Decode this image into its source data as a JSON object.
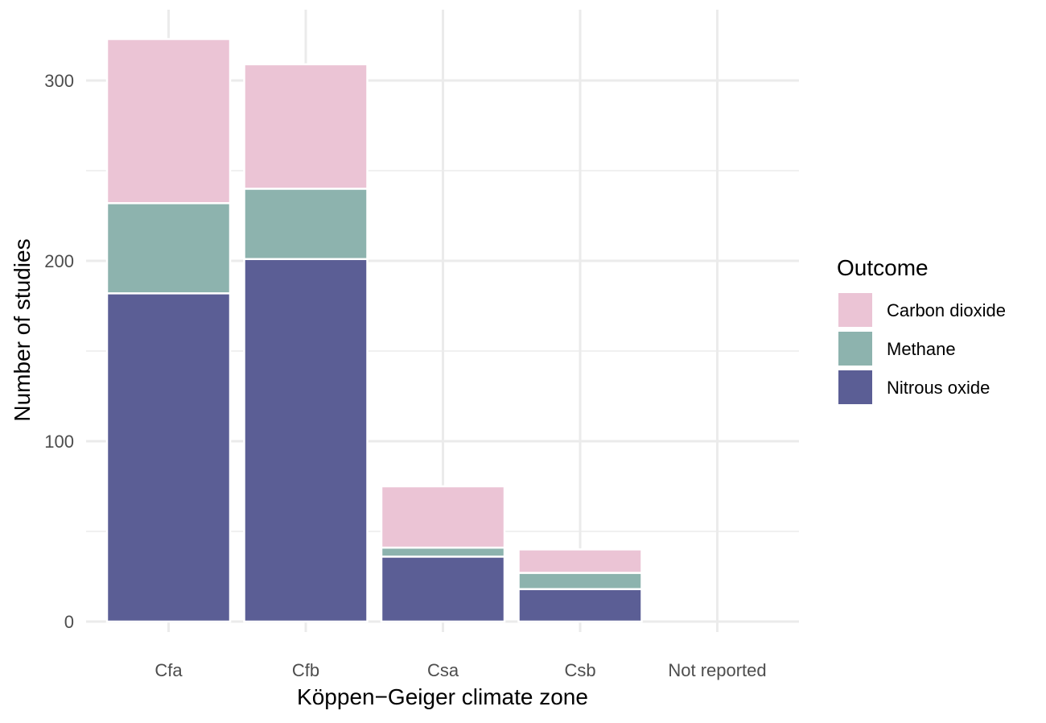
{
  "chart_data": {
    "type": "bar",
    "stacked": true,
    "categories": [
      "Cfa",
      "Cfb",
      "Csa",
      "Csb",
      "Not reported"
    ],
    "series": [
      {
        "name": "Nitrous oxide",
        "values": [
          182,
          201,
          36,
          18,
          0
        ],
        "color": "#5b5e95"
      },
      {
        "name": "Methane",
        "values": [
          50,
          39,
          5,
          9,
          0
        ],
        "color": "#8db3ae"
      },
      {
        "name": "Carbon dioxide",
        "values": [
          91,
          69,
          34,
          13,
          0
        ],
        "color": "#ebc4d5"
      }
    ],
    "xlabel": "Köppen−Geiger climate zone",
    "ylabel": "Number of studies",
    "ylim": [
      0,
      330
    ],
    "yticks": [
      "0",
      "100",
      "200",
      "300"
    ],
    "grid": true,
    "legend": {
      "title": "Outcome",
      "position": "right",
      "items": [
        "Carbon dioxide",
        "Methane",
        "Nitrous oxide"
      ]
    }
  }
}
